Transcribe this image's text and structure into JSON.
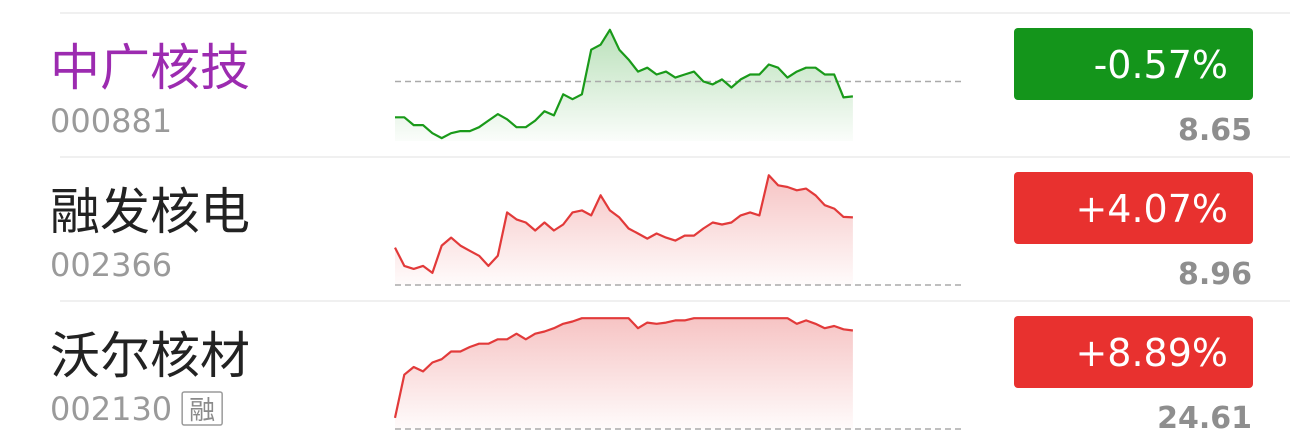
{
  "rows": [
    {
      "name": "中广核技",
      "code": "000881",
      "change": "-0.57%",
      "price": 8.65,
      "name_color": "#9c2bb0",
      "color": "#14951b",
      "trend": {
        "xlim": [
          0,
          61
        ],
        "ylim": [
          -2.28,
          2.05
        ],
        "baseline": 0,
        "color": "#1a9a1a",
        "values": [
          -1.37,
          -1.37,
          -1.67,
          -1.67,
          -1.98,
          -2.17,
          -1.98,
          -1.9,
          -1.9,
          -1.75,
          -1.5,
          -1.25,
          -1.45,
          -1.75,
          -1.75,
          -1.5,
          -1.14,
          -1.3,
          -0.49,
          -0.68,
          -0.49,
          1.22,
          1.41,
          1.98,
          1.22,
          0.84,
          0.38,
          0.53,
          0.27,
          0.38,
          0.15,
          0.27,
          0.38,
          0,
          -0.11,
          0.08,
          -0.23,
          0.08,
          0.27,
          0.27,
          0.65,
          0.53,
          0.15,
          0.38,
          0.53,
          0.53,
          0.27,
          0.27,
          -0.61,
          -0.57
        ]
      }
    },
    {
      "name": "融发核电",
      "code": "002366",
      "change": "+4.07%",
      "price": 8.96,
      "name_color": "#222222",
      "color": "#e8312f",
      "trend": {
        "xlim": [
          0,
          61
        ],
        "ylim": [
          0,
          6.8
        ],
        "baseline": 0,
        "color": "#e23a3a",
        "values": [
          2.25,
          1.15,
          0.97,
          1.15,
          0.73,
          2.37,
          2.85,
          2.37,
          2.06,
          1.76,
          1.15,
          1.76,
          4.37,
          3.95,
          3.76,
          3.28,
          3.76,
          3.28,
          3.64,
          4.37,
          4.49,
          4.19,
          5.4,
          4.49,
          4.07,
          3.4,
          3.1,
          2.79,
          3.1,
          2.85,
          2.67,
          2.97,
          2.97,
          3.4,
          3.76,
          3.64,
          3.76,
          4.19,
          4.37,
          4.19,
          6.6,
          6.0,
          5.9,
          5.7,
          5.8,
          5.4,
          4.8,
          4.6,
          4.1,
          4.07
        ]
      }
    },
    {
      "name": "沃尔核材",
      "code": "002130",
      "tag": "融",
      "change": "+8.89%",
      "price": 24.61,
      "name_color": "#222222",
      "color": "#e8312f",
      "trend": {
        "xlim": [
          0,
          61
        ],
        "ylim": [
          0,
          10.2
        ],
        "baseline": 0,
        "color": "#e23a3a",
        "values": [
          1.0,
          4.9,
          5.6,
          5.2,
          6.0,
          6.3,
          7.0,
          7.0,
          7.4,
          7.7,
          7.7,
          8.1,
          8.1,
          8.6,
          8.1,
          8.6,
          8.8,
          9.1,
          9.5,
          9.7,
          10,
          10,
          10,
          10,
          10,
          10,
          9.1,
          9.6,
          9.5,
          9.6,
          9.8,
          9.8,
          10,
          10,
          10,
          10,
          10,
          10,
          10,
          10,
          10,
          10,
          10,
          9.5,
          9.8,
          9.5,
          9.1,
          9.3,
          9.0,
          8.89
        ]
      }
    }
  ]
}
